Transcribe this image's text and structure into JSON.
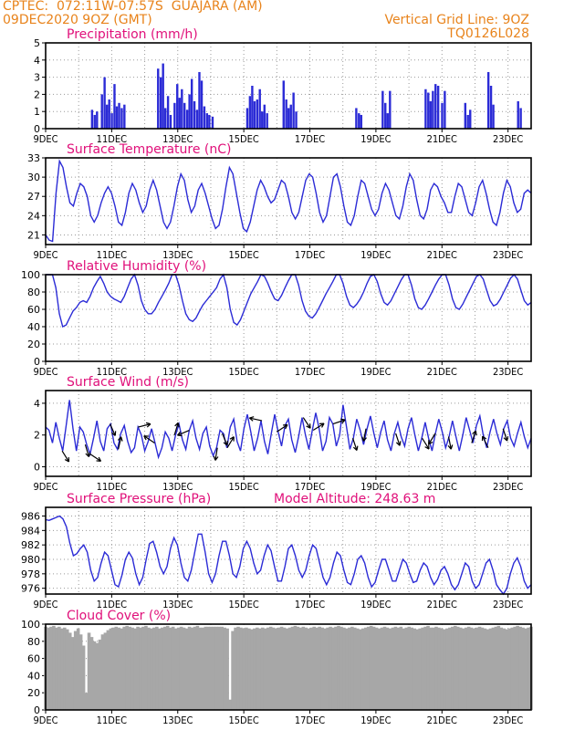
{
  "header": {
    "line1": "CPTEC:  072:11W-07:57S  GUAJARA (AM)",
    "line2": "09DEC2020 9OZ (GMT)",
    "right1": "Vertical Grid Line: 9OZ",
    "right2": "TQ0126L028"
  },
  "colors": {
    "orange": "#e8831b",
    "magenta": "#e0107a",
    "series": "#2b2bd6",
    "cloud": "#a7a7a7"
  },
  "x_axis": {
    "ticks": [
      "9DEC",
      "11DEC",
      "13DEC",
      "15DEC",
      "17DEC",
      "19DEC",
      "21DEC",
      "23DEC"
    ],
    "tick_days": [
      0,
      2,
      4,
      6,
      8,
      10,
      12,
      14
    ],
    "range_days": [
      0,
      14.7
    ],
    "vertical_grid_every_days": 1
  },
  "chart_data": [
    {
      "type": "bar",
      "title": "Precipitation (mm/h)",
      "ylim": [
        0,
        5
      ],
      "yticks": [
        0,
        1,
        2,
        3,
        4,
        5
      ],
      "bar_days": [
        1.4,
        1.48,
        1.55,
        1.7,
        1.78,
        1.85,
        1.92,
        2.0,
        2.08,
        2.15,
        2.22,
        2.3,
        2.38,
        3.4,
        3.48,
        3.55,
        3.62,
        3.7,
        3.78,
        3.9,
        3.98,
        4.05,
        4.12,
        4.2,
        4.28,
        4.35,
        4.42,
        4.5,
        4.58,
        4.65,
        4.72,
        4.8,
        4.88,
        4.95,
        5.05,
        6.1,
        6.18,
        6.25,
        6.32,
        6.4,
        6.48,
        6.55,
        6.62,
        6.7,
        7.2,
        7.28,
        7.35,
        7.42,
        7.5,
        7.58,
        9.4,
        9.48,
        9.55,
        10.2,
        10.28,
        10.35,
        10.42,
        11.5,
        11.58,
        11.65,
        11.72,
        11.8,
        11.88,
        12.0,
        12.08,
        12.7,
        12.78,
        12.85,
        13.4,
        13.48,
        13.55,
        14.3,
        14.38
      ],
      "bar_values": [
        1.1,
        0.8,
        1.0,
        2.0,
        3.0,
        1.4,
        1.7,
        0.9,
        2.6,
        1.3,
        1.5,
        1.2,
        1.4,
        3.5,
        3.0,
        3.8,
        1.2,
        1.9,
        0.8,
        1.5,
        2.6,
        1.8,
        2.3,
        1.5,
        1.1,
        2.0,
        2.9,
        1.6,
        1.1,
        3.3,
        2.8,
        1.3,
        0.9,
        0.8,
        0.7,
        1.2,
        1.9,
        2.5,
        1.6,
        1.7,
        2.3,
        1.0,
        1.4,
        0.9,
        2.8,
        1.7,
        1.2,
        1.4,
        2.1,
        1.0,
        1.2,
        0.9,
        0.8,
        2.2,
        1.5,
        0.9,
        2.2,
        2.3,
        2.1,
        1.6,
        2.2,
        2.6,
        2.5,
        1.5,
        2.2,
        1.5,
        0.8,
        1.1,
        3.3,
        2.5,
        1.4,
        1.6,
        1.2
      ]
    },
    {
      "type": "line",
      "title": "Surface Temperature (nC)",
      "ylim": [
        19.5,
        33
      ],
      "yticks": [
        21,
        24,
        27,
        30,
        33
      ],
      "series": [
        {
          "values": [
            21.0,
            20.2,
            20.0,
            27.5,
            32.5,
            31.5,
            28.5,
            26.0,
            25.5,
            27.5,
            29.0,
            28.5,
            27.0,
            24.0,
            23.0,
            24.0,
            26.0,
            27.5,
            28.5,
            27.5,
            25.5,
            23.0,
            22.5,
            24.5,
            27.5,
            29.0,
            28.0,
            26.0,
            24.5,
            25.5,
            28.0,
            29.5,
            28.0,
            25.5,
            23.0,
            22.0,
            23.0,
            25.5,
            28.5,
            30.5,
            29.5,
            26.5,
            24.5,
            25.5,
            28.0,
            29.0,
            27.5,
            25.5,
            23.5,
            22.0,
            22.5,
            25.0,
            28.5,
            31.5,
            30.5,
            27.5,
            24.5,
            22.0,
            21.5,
            23.0,
            25.5,
            28.0,
            29.5,
            28.5,
            27.0,
            26.0,
            26.5,
            28.0,
            29.5,
            29.0,
            27.0,
            24.5,
            23.5,
            24.5,
            27.0,
            29.5,
            30.5,
            30.0,
            27.5,
            24.5,
            23.0,
            24.0,
            27.0,
            30.0,
            30.5,
            28.5,
            25.5,
            23.0,
            22.5,
            24.0,
            27.0,
            29.5,
            29.0,
            27.0,
            25.0,
            24.0,
            25.0,
            27.5,
            29.0,
            28.0,
            26.0,
            24.0,
            23.5,
            25.5,
            28.5,
            30.5,
            29.5,
            26.5,
            24.0,
            23.5,
            25.0,
            28.0,
            29.0,
            28.5,
            27.0,
            26.0,
            24.5,
            24.5,
            27.0,
            29.0,
            28.5,
            26.5,
            24.5,
            24.0,
            26.0,
            28.5,
            29.5,
            27.5,
            25.0,
            23.0,
            22.5,
            24.5,
            27.5,
            29.5,
            28.5,
            26.0,
            24.5,
            25.0,
            27.5,
            28.0,
            27.5
          ]
        }
      ]
    },
    {
      "type": "line",
      "title": "Relative Humidity (%)",
      "ylim": [
        0,
        100
      ],
      "yticks": [
        0,
        20,
        40,
        60,
        80,
        100
      ],
      "series": [
        {
          "values": [
            100,
            100,
            100,
            85,
            55,
            40,
            42,
            50,
            58,
            62,
            68,
            70,
            68,
            75,
            85,
            92,
            98,
            90,
            80,
            75,
            72,
            70,
            68,
            75,
            85,
            95,
            100,
            88,
            70,
            60,
            55,
            55,
            60,
            68,
            75,
            82,
            90,
            100,
            100,
            88,
            70,
            55,
            48,
            46,
            50,
            58,
            65,
            70,
            75,
            80,
            85,
            95,
            100,
            85,
            60,
            45,
            42,
            48,
            58,
            68,
            78,
            85,
            92,
            100,
            98,
            90,
            80,
            72,
            70,
            76,
            85,
            93,
            100,
            100,
            88,
            70,
            58,
            52,
            50,
            55,
            62,
            70,
            78,
            85,
            92,
            100,
            100,
            90,
            75,
            65,
            62,
            66,
            72,
            80,
            90,
            98,
            100,
            92,
            78,
            68,
            65,
            70,
            78,
            86,
            94,
            100,
            100,
            88,
            72,
            62,
            60,
            65,
            72,
            80,
            88,
            95,
            100,
            100,
            88,
            72,
            62,
            60,
            66,
            74,
            82,
            90,
            98,
            100,
            95,
            82,
            70,
            64,
            66,
            72,
            80,
            88,
            96,
            100,
            95,
            82,
            70,
            65,
            68
          ]
        }
      ]
    },
    {
      "type": "line",
      "title": "Surface Wind (m/s)",
      "ylim": [
        -0.6,
        4.8
      ],
      "yticks": [
        0,
        2,
        4
      ],
      "series": [
        {
          "values": [
            2.5,
            2.3,
            1.5,
            2.8,
            1.8,
            1.0,
            2.6,
            4.2,
            2.4,
            1.0,
            2.5,
            2.2,
            1.4,
            0.8,
            1.8,
            2.9,
            1.6,
            1.0,
            2.4,
            2.7,
            1.5,
            1.1,
            2.1,
            2.6,
            1.6,
            0.9,
            1.2,
            2.5,
            2.0,
            1.0,
            1.6,
            2.4,
            1.5,
            0.6,
            1.2,
            2.2,
            1.8,
            1.0,
            2.0,
            2.7,
            1.7,
            1.1,
            2.3,
            2.9,
            1.8,
            1.1,
            2.1,
            2.5,
            1.3,
            0.7,
            1.2,
            2.3,
            2.1,
            1.2,
            2.5,
            3.0,
            1.6,
            1.0,
            2.4,
            3.3,
            2.2,
            1.0,
            1.8,
            2.9,
            1.6,
            0.8,
            2.1,
            3.3,
            2.2,
            1.3,
            2.6,
            3.0,
            1.7,
            0.9,
            1.9,
            3.1,
            2.0,
            1.1,
            2.3,
            3.4,
            2.4,
            1.0,
            1.6,
            3.1,
            2.7,
            1.3,
            2.0,
            3.9,
            2.5,
            1.1,
            1.8,
            3.0,
            2.3,
            1.4,
            2.4,
            3.2,
            2.1,
            1.2,
            2.2,
            2.9,
            1.7,
            1.0,
            2.1,
            2.8,
            1.9,
            1.3,
            2.4,
            3.1,
            2.0,
            1.0,
            1.8,
            2.8,
            1.8,
            1.0,
            2.1,
            3.0,
            2.2,
            1.2,
            1.9,
            2.9,
            1.9,
            1.0,
            2.0,
            3.1,
            2.3,
            1.5,
            2.6,
            3.2,
            2.0,
            1.2,
            2.2,
            3.0,
            2.1,
            1.4,
            2.4,
            2.9,
            1.8,
            1.3,
            2.1,
            2.8,
            1.9,
            1.2,
            1.8
          ]
        }
      ],
      "arrows": [
        {
          "day": 0.5,
          "u": 0.5,
          "v": -0.8
        },
        {
          "day": 1.2,
          "u": 0.3,
          "v": -1.0
        },
        {
          "day": 1.35,
          "u": 0.6,
          "v": -0.4
        },
        {
          "day": 1.95,
          "u": 0.4,
          "v": -0.9
        },
        {
          "day": 2.2,
          "u": 0.2,
          "v": 0.9
        },
        {
          "day": 2.8,
          "u": 0.8,
          "v": 0.2
        },
        {
          "day": 3.3,
          "u": -0.6,
          "v": 0.4
        },
        {
          "day": 3.9,
          "u": 0.3,
          "v": 1.0
        },
        {
          "day": 4.35,
          "u": -0.7,
          "v": -0.3
        },
        {
          "day": 5.2,
          "u": -0.2,
          "v": -1.2
        },
        {
          "day": 5.35,
          "u": 0.4,
          "v": -1.0
        },
        {
          "day": 5.5,
          "u": 0.6,
          "v": 1.0
        },
        {
          "day": 6.55,
          "u": -0.9,
          "v": 0.2
        },
        {
          "day": 7.0,
          "u": 0.6,
          "v": 0.4
        },
        {
          "day": 7.8,
          "u": 0.4,
          "v": -0.6
        },
        {
          "day": 8.1,
          "u": 0.8,
          "v": 0.5
        },
        {
          "day": 8.7,
          "u": 0.9,
          "v": 0.3
        },
        {
          "day": 9.3,
          "u": 0.3,
          "v": -0.9
        },
        {
          "day": 9.7,
          "u": -0.2,
          "v": -1.0
        },
        {
          "day": 10.6,
          "u": 0.3,
          "v": -0.9
        },
        {
          "day": 11.4,
          "u": 0.5,
          "v": -0.8
        },
        {
          "day": 11.8,
          "u": -0.5,
          "v": -0.8
        },
        {
          "day": 12.2,
          "u": 0.2,
          "v": -1.0
        },
        {
          "day": 12.9,
          "u": 0.3,
          "v": 0.9
        },
        {
          "day": 13.4,
          "u": -0.4,
          "v": 0.8
        },
        {
          "day": 13.85,
          "u": 0.3,
          "v": -0.9
        }
      ]
    },
    {
      "type": "line",
      "title": "Surface Pressure (hPa)",
      "annotation": "Model Altitude: 248.63 m",
      "ylim": [
        975.2,
        987.2
      ],
      "yticks": [
        976,
        978,
        980,
        982,
        984,
        986
      ],
      "series": [
        {
          "values": [
            985.5,
            985.4,
            985.6,
            985.8,
            986.0,
            985.6,
            984.5,
            982.2,
            980.5,
            980.8,
            981.5,
            982.0,
            981.0,
            978.5,
            977.0,
            977.5,
            979.5,
            981.0,
            980.5,
            978.5,
            976.5,
            976.2,
            977.8,
            980.0,
            981.0,
            980.2,
            978.0,
            976.5,
            977.5,
            980.0,
            982.2,
            982.5,
            981.0,
            979.0,
            978.0,
            979.0,
            981.5,
            983.0,
            982.0,
            979.5,
            977.5,
            977.0,
            978.5,
            981.0,
            983.5,
            983.5,
            981.0,
            978.0,
            976.8,
            978.0,
            980.5,
            982.5,
            982.5,
            980.5,
            978.0,
            977.5,
            979.0,
            981.5,
            982.5,
            981.5,
            979.5,
            978.0,
            978.5,
            980.5,
            982.0,
            981.2,
            979.0,
            977.0,
            977.0,
            979.0,
            981.5,
            982.0,
            980.5,
            978.5,
            977.5,
            978.5,
            980.5,
            982.0,
            981.5,
            979.5,
            977.5,
            976.5,
            977.5,
            979.5,
            981.0,
            980.5,
            978.5,
            976.8,
            976.5,
            978.0,
            980.0,
            980.5,
            979.5,
            977.5,
            976.2,
            976.8,
            978.5,
            980.0,
            980.0,
            978.5,
            977.0,
            977.0,
            978.5,
            980.0,
            979.5,
            978.0,
            976.8,
            977.0,
            978.5,
            979.5,
            979.0,
            977.5,
            976.5,
            977.2,
            978.5,
            979.0,
            978.0,
            976.5,
            975.8,
            976.5,
            978.0,
            979.5,
            979.0,
            977.0,
            976.0,
            976.5,
            978.0,
            979.5,
            980.0,
            978.5,
            976.5,
            975.8,
            975.2,
            976.0,
            978.0,
            979.5,
            980.2,
            979.0,
            977.0,
            976.0,
            976.5
          ]
        }
      ]
    },
    {
      "type": "area",
      "title": "Cloud Cover (%)",
      "ylim": [
        0,
        100
      ],
      "yticks": [
        0,
        20,
        40,
        60,
        80,
        100
      ],
      "series": [
        {
          "values": [
            97,
            96,
            97,
            98,
            96,
            97,
            95,
            96,
            94,
            90,
            85,
            92,
            95,
            88,
            75,
            20,
            90,
            85,
            80,
            78,
            82,
            88,
            90,
            93,
            95,
            96,
            97,
            96,
            95,
            97,
            98,
            97,
            96,
            95,
            97,
            96,
            97,
            98,
            96,
            95,
            96,
            97,
            95,
            96,
            97,
            98,
            96,
            97,
            95,
            96,
            97,
            96,
            95,
            97,
            96,
            97,
            98,
            96,
            96,
            97,
            97,
            97,
            97,
            97,
            97,
            97,
            96,
            95,
            12,
            92,
            96,
            97,
            96,
            95,
            96,
            95,
            94,
            95,
            96,
            95,
            96,
            95,
            96,
            97,
            96,
            95,
            96,
            97,
            96,
            95,
            96,
            97,
            98,
            97,
            96,
            97,
            96,
            95,
            96,
            97,
            96,
            97,
            96,
            95,
            96,
            97,
            96,
            97,
            98,
            97,
            96,
            95,
            96,
            97,
            96,
            95,
            94,
            95,
            96,
            97,
            98,
            97,
            96,
            95,
            96,
            97,
            96,
            95,
            96,
            97,
            96,
            97,
            95,
            96,
            97,
            96,
            95,
            94,
            95,
            96,
            97,
            98,
            96,
            96,
            97,
            96,
            95,
            94,
            95,
            96,
            97,
            98,
            97,
            96,
            95,
            96,
            97,
            96,
            95,
            96,
            97,
            96,
            95,
            94,
            95,
            96,
            97,
            98,
            96,
            95,
            94,
            95,
            96,
            97,
            98,
            97,
            96,
            95,
            96,
            97
          ]
        }
      ]
    }
  ]
}
